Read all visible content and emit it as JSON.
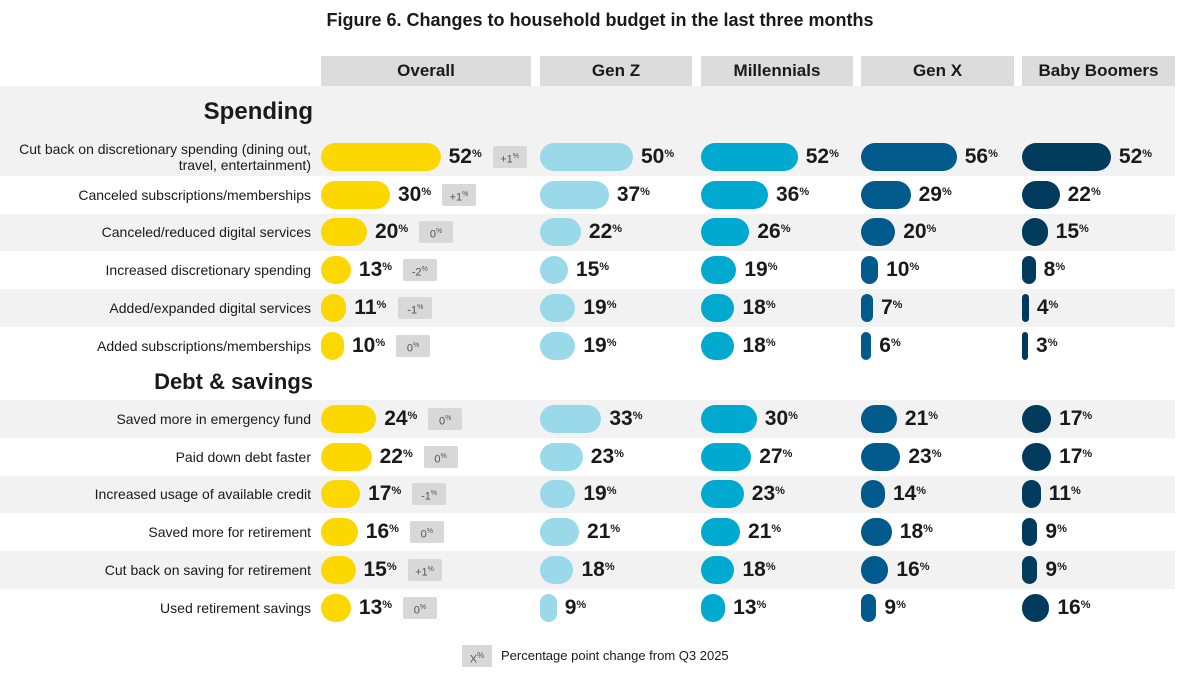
{
  "chart_data": {
    "type": "bar",
    "title": "Figure 6. Changes to household budget in the last three months",
    "groups": [
      "Overall",
      "Gen Z",
      "Millennials",
      "Gen X",
      "Baby Boomers"
    ],
    "colors": {
      "Overall": "#fdd700",
      "Gen Z": "#99d9ea",
      "Millennials": "#00a9cf",
      "Gen X": "#005a8b",
      "Baby Boomers": "#003a5c"
    },
    "value_unit": "%",
    "sections": [
      {
        "name": "Spending",
        "rows": [
          {
            "label": "Cut back on discretionary spending (dining out, travel, entertainment)",
            "values": [
              52,
              50,
              52,
              56,
              52
            ],
            "change": "+1"
          },
          {
            "label": "Canceled subscriptions/memberships",
            "values": [
              30,
              37,
              36,
              29,
              22
            ],
            "change": "+1"
          },
          {
            "label": "Canceled/reduced digital services",
            "values": [
              20,
              22,
              26,
              20,
              15
            ],
            "change": "0"
          },
          {
            "label": "Increased discretionary spending",
            "values": [
              13,
              15,
              19,
              10,
              8
            ],
            "change": "-2"
          },
          {
            "label": "Added/expanded digital services",
            "values": [
              11,
              19,
              18,
              7,
              4
            ],
            "change": "-1"
          },
          {
            "label": "Added subscriptions/memberships",
            "values": [
              10,
              19,
              18,
              6,
              3
            ],
            "change": "0"
          }
        ]
      },
      {
        "name": "Debt & savings",
        "rows": [
          {
            "label": "Saved more in emergency fund",
            "values": [
              24,
              33,
              30,
              21,
              17
            ],
            "change": "0"
          },
          {
            "label": "Paid down debt faster",
            "values": [
              22,
              23,
              27,
              23,
              17
            ],
            "change": "0"
          },
          {
            "label": "Increased usage of available credit",
            "values": [
              17,
              19,
              23,
              14,
              11
            ],
            "change": "-1"
          },
          {
            "label": "Saved more for retirement",
            "values": [
              16,
              21,
              21,
              18,
              9
            ],
            "change": "0"
          },
          {
            "label": "Cut back on saving for retirement",
            "values": [
              15,
              18,
              18,
              16,
              9
            ],
            "change": "+1"
          },
          {
            "label": "Used retirement savings",
            "values": [
              13,
              9,
              13,
              9,
              16
            ],
            "change": "0"
          }
        ]
      }
    ],
    "legend": {
      "swatch": "X",
      "text": "Percentage point change from Q3 2025"
    }
  }
}
